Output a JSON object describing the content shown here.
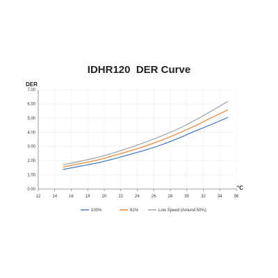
{
  "chart_data": {
    "type": "line",
    "title": "IDHR120  DER Curve",
    "ylabel": "DER",
    "xlabel": "°C",
    "xlim": [
      12,
      36
    ],
    "ylim": [
      0,
      7
    ],
    "x_ticks": [
      "12",
      "14",
      "16",
      "18",
      "20",
      "22",
      "24",
      "26",
      "28",
      "30",
      "32",
      "34",
      "36"
    ],
    "y_ticks": [
      "0.00",
      "1.00",
      "2.00",
      "3.00",
      "4.00",
      "5.00",
      "6.00",
      "7.00"
    ],
    "grid": "both",
    "legend_position": "bottom",
    "x": [
      15,
      17,
      19,
      21,
      23,
      25,
      27,
      29,
      31,
      33,
      35
    ],
    "series": [
      {
        "name": "100%",
        "color": "#4a7fbf",
        "values": [
          1.38,
          1.6,
          1.82,
          2.1,
          2.42,
          2.75,
          3.13,
          3.58,
          4.08,
          4.55,
          5.05
        ]
      },
      {
        "name": "81%",
        "color": "#e8873a",
        "values": [
          1.55,
          1.78,
          2.02,
          2.33,
          2.67,
          3.03,
          3.45,
          3.93,
          4.45,
          5.03,
          5.58
        ]
      },
      {
        "name": "Low Speed (Around 50%)",
        "color": "#a6a6a6",
        "values": [
          1.7,
          1.95,
          2.2,
          2.52,
          2.9,
          3.3,
          3.75,
          4.25,
          4.85,
          5.5,
          6.18
        ]
      }
    ]
  }
}
